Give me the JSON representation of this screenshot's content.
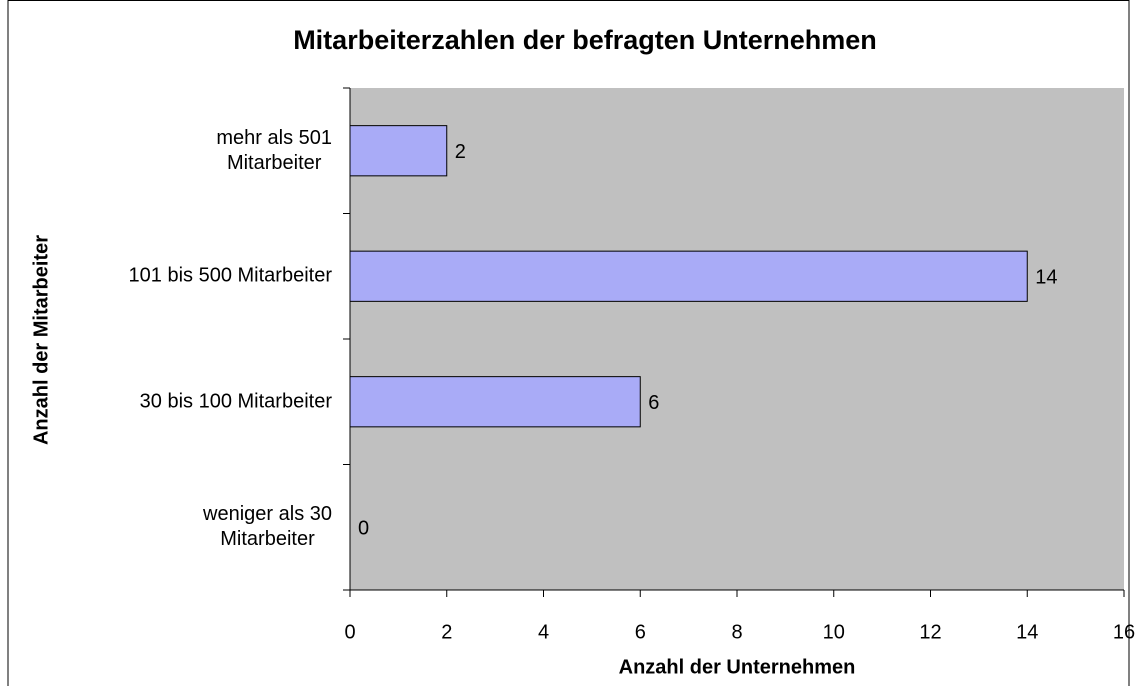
{
  "chart_data": {
    "type": "barh",
    "title": "Mitarbeiterzahlen der befragten Unternehmen",
    "xlabel": "Anzahl der Unternehmen",
    "ylabel": "Anzahl der Mitarbeiter",
    "categories": [
      "weniger als 30\nMitarbeiter",
      "30 bis 100 Mitarbeiter",
      "101 bis 500 Mitarbeiter",
      "mehr als 501\nMitarbeiter"
    ],
    "values": [
      0,
      6,
      14,
      2
    ],
    "color": "#a9abf7",
    "plot_background": "#c0c0c0",
    "xlim": [
      0,
      16
    ],
    "xticks": [
      0,
      2,
      4,
      6,
      8,
      10,
      12,
      14,
      16
    ],
    "grid": false
  }
}
